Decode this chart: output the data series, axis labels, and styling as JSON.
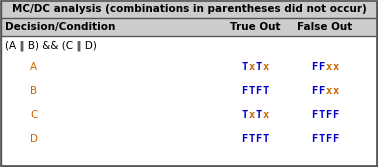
{
  "title": "MC/DC analysis (combinations in parentheses did not occur)",
  "header_col": "Decision/Condition",
  "header_true": "True Out",
  "header_false": "False Out",
  "expression": "(A ‖ B) && (C ‖ D)",
  "rows": [
    {
      "label": "A",
      "true_out": "TxTx",
      "false_out": "FFxx"
    },
    {
      "label": "B",
      "true_out": "FTFT",
      "false_out": "FFxx"
    },
    {
      "label": "C",
      "true_out": "TxTx",
      "false_out": "FTFF"
    },
    {
      "label": "D",
      "true_out": "FTFT",
      "false_out": "FTFF"
    }
  ],
  "blue_color": "#0000CC",
  "orange_color": "#CC6600",
  "black_color": "#000000",
  "label_color": "#CC6600",
  "bg_color": "#FFFFFF",
  "border_color": "#555555",
  "title_bg": "#CCCCCC",
  "header_bg": "#CCCCCC"
}
